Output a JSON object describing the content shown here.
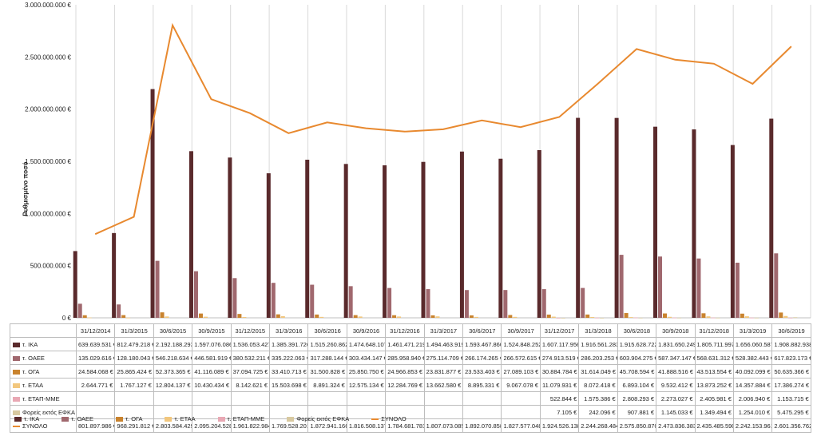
{
  "chart_data": {
    "type": "bar",
    "ylabel": "Ρυθμισμένο ποσό",
    "ylim": [
      0,
      3000000000
    ],
    "yticks": [
      "0 €",
      "500.000.000 €",
      "1.000.000.000 €",
      "1.500.000.000 €",
      "2.000.000.000 €",
      "2.500.000.000 €",
      "3.000.000.000 €"
    ],
    "categories": [
      "31/12/2014",
      "31/3/2015",
      "30/6/2015",
      "30/9/2015",
      "31/12/2015",
      "31/3/2016",
      "30/6/2016",
      "30/9/2016",
      "31/12/2016",
      "31/3/2017",
      "30/6/2017",
      "30/9/2017",
      "31/12/2017",
      "31/3/2018",
      "30/6/2018",
      "30/9/2018",
      "31/12/2018",
      "31/3/2019",
      "30/6/2019"
    ],
    "series": [
      {
        "name": "τ. ΙΚΑ",
        "kind": "bar",
        "color": "#5A2A2C",
        "values": [
          639639531,
          812479218,
          2192188293,
          1597076086,
          1536053427,
          1385391726,
          1515260862,
          1474648107,
          1461471219,
          1494463919,
          1593467860,
          1524848252,
          1607117956,
          1916561283,
          1915628722,
          1831650249,
          1805711997,
          1656060587,
          1908882938
        ],
        "labels": [
          "639.639.531 €",
          "812.479.218 €",
          "2.192.188.293",
          "1.597.076.086",
          "1.536.053.427",
          "1.385.391.726",
          "1.515.260.862",
          "1.474.648.107",
          "1.461.471.219",
          "1.494.463.919",
          "1.593.467.860",
          "1.524.848.252",
          "1.607.117.956",
          "1.916.561.283",
          "1.915.628.722",
          "1.831.650.249",
          "1.805.711.997",
          "1.656.060.587",
          "1.908.882.938"
        ]
      },
      {
        "name": "τ. ΟΑΕΕ",
        "kind": "bar",
        "color": "#A0686E",
        "values": [
          135029616,
          128180043,
          546218634,
          446581919,
          380532211,
          335222063,
          317288144,
          303434147,
          285958940,
          275114709,
          266174265,
          266572615,
          274913519,
          286203253,
          603904275,
          587347147,
          568631312,
          528382443,
          617823173
        ],
        "labels": [
          "135.029.616 €",
          "128.180.043 €",
          "546.218.634 €",
          "446.581.919 €",
          "380.532.211 €",
          "335.222.063 €",
          "317.288.144 €",
          "303.434.147 €",
          "285.958.940 €",
          "275.114.709 €",
          "266.174.265 €",
          "266.572.615 €",
          "274.913.519 €",
          "286.203.253 €",
          "603.904.275 €",
          "587.347.147 €",
          "568.631.312 €",
          "528.382.443 €",
          "617.823.173 €"
        ]
      },
      {
        "name": "τ. ΟΓΑ",
        "kind": "bar",
        "color": "#C9832E",
        "values": [
          24584068,
          25865424,
          52373365,
          41116089,
          37094725,
          33410713,
          31500828,
          25850750,
          24966853,
          23831877,
          23533403,
          27089103,
          30884784,
          31614049,
          45708594,
          41888516,
          43513554,
          40092099,
          50635366
        ],
        "labels": [
          "24.584.068 €",
          "25.865.424 €",
          "52.373.365 €",
          "41.116.089 €",
          "37.094.725 €",
          "33.410.713 €",
          "31.500.828 €",
          "25.850.750 €",
          "24.966.853 €",
          "23.831.877 €",
          "23.533.403 €",
          "27.089.103 €",
          "30.884.784 €",
          "31.614.049 €",
          "45.708.594 €",
          "41.888.516 €",
          "43.513.554 €",
          "40.092.099 €",
          "50.635.366 €"
        ]
      },
      {
        "name": "τ. ΕΤΑΑ",
        "kind": "bar",
        "color": "#F2C77E",
        "values": [
          2644771,
          1767127,
          12804137,
          10430434,
          8142621,
          15503698,
          8891324,
          12575134,
          12284769,
          13662580,
          8895331,
          9067078,
          11079931,
          8072418,
          6893104,
          9532412,
          13873252,
          14357884,
          17386274
        ],
        "labels": [
          "2.644.771 €",
          "1.767.127 €",
          "12.804.137 €",
          "10.430.434 €",
          "8.142.621 €",
          "15.503.698 €",
          "8.891.324 €",
          "12.575.134 €",
          "12.284.769 €",
          "13.662.580 €",
          "8.895.331 €",
          "9.067.078 €",
          "11.079.931 €",
          "8.072.418 €",
          "6.893.104 €",
          "9.532.412 €",
          "13.873.252 €",
          "14.357.884 €",
          "17.386.274 €"
        ]
      },
      {
        "name": "τ. ΕΤΑΠ-ΜΜΕ",
        "kind": "bar",
        "color": "#E9A8B4",
        "values": [
          null,
          null,
          null,
          null,
          null,
          null,
          null,
          null,
          null,
          null,
          null,
          null,
          522844,
          1575386,
          2808293,
          2273027,
          2405981,
          2006940,
          1153715
        ],
        "labels": [
          "",
          "",
          "",
          "",
          "",
          "",
          "",
          "",
          "",
          "",
          "",
          "",
          "522.844 €",
          "1.575.386 €",
          "2.808.293 €",
          "2.273.027 €",
          "2.405.981 €",
          "2.006.940 €",
          "1.153.715 €"
        ]
      },
      {
        "name": "Φορείς εκτός ΕΦΚΑ",
        "kind": "bar",
        "color": "#D8C9A0",
        "values": [
          null,
          null,
          null,
          null,
          null,
          null,
          null,
          null,
          null,
          null,
          null,
          null,
          7105,
          242096,
          907881,
          1145033,
          1349494,
          1254010,
          5475295
        ],
        "labels": [
          "",
          "",
          "",
          "",
          "",
          "",
          "",
          "",
          "",
          "",
          "",
          "",
          "7.105 €",
          "242.096 €",
          "907.881 €",
          "1.145.033 €",
          "1.349.494 €",
          "1.254.010 €",
          "5.475.295 €"
        ]
      },
      {
        "name": "ΣΥΝΟΛΟ",
        "kind": "line",
        "color": "#E8892F",
        "values": [
          801897986,
          968291812,
          2803584429,
          2095204528,
          1961822984,
          1769528201,
          1872941166,
          1816508137,
          1784681781,
          1807073085,
          1892070858,
          1827577048,
          1924526138,
          2244268484,
          2575850870,
          2473836383,
          2435485590,
          2242153961,
          2601356762
        ],
        "labels": [
          "801.897.986 €",
          "968.291.812 €",
          "2.803.584.429",
          "2.095.204.528",
          "1.961.822.984",
          "1.769.528.201",
          "1.872.941.166",
          "1.816.508.137",
          "1.784.681.781",
          "1.807.073.085",
          "1.892.070.858",
          "1.827.577.048",
          "1.924.526.138",
          "2.244.268.484",
          "2.575.850.870",
          "2.473.836.383",
          "2.435.485.590",
          "2.242.153.961",
          "2.601.356.762"
        ]
      }
    ],
    "grid": "vertical",
    "legend": "bottom-left"
  }
}
